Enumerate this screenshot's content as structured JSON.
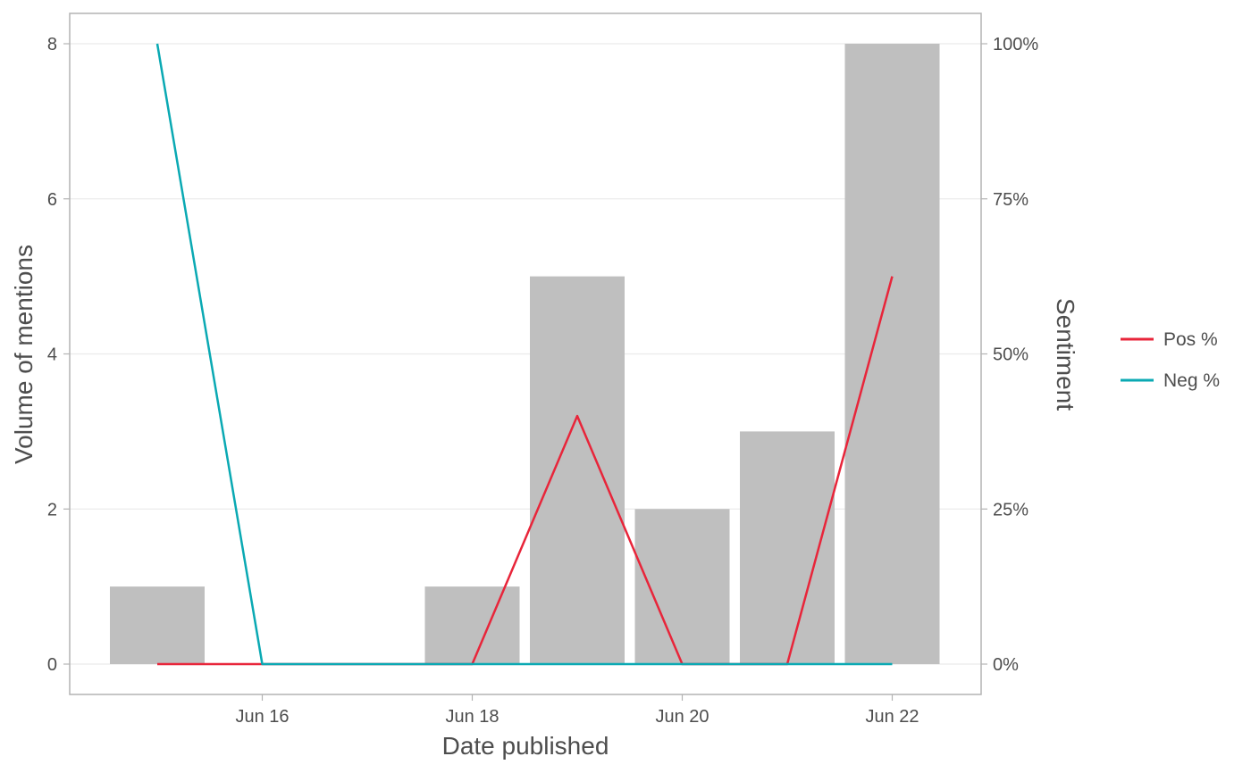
{
  "chart_data": {
    "type": "bar",
    "title": "",
    "xlabel": "Date published",
    "ylabel": "Volume of mentions",
    "y2label": "Sentiment",
    "categories": [
      "Jun 15",
      "Jun 16",
      "Jun 17",
      "Jun 18",
      "Jun 19",
      "Jun 20",
      "Jun 21",
      "Jun 22"
    ],
    "x_tick_labels": [
      "Jun 16",
      "Jun 18",
      "Jun 20",
      "Jun 22"
    ],
    "x_tick_indices": [
      1,
      3,
      5,
      7
    ],
    "ylim": [
      0,
      8
    ],
    "y_ticks": [
      0,
      2,
      4,
      6,
      8
    ],
    "y2lim": [
      0,
      100
    ],
    "y2_ticks": [
      0,
      25,
      50,
      75,
      100
    ],
    "y2_tick_labels": [
      "0%",
      "25%",
      "50%",
      "75%",
      "100%"
    ],
    "grid": true,
    "legend_position": "right",
    "bars": {
      "name": "Volume of mentions",
      "color": "#bfbfbf",
      "values": [
        1,
        0,
        0,
        1,
        5,
        2,
        3,
        8
      ]
    },
    "series": [
      {
        "name": "Pos %",
        "color": "#e8253a",
        "axis": "secondary",
        "values": [
          0,
          0,
          0,
          0,
          40,
          0,
          0,
          62.5
        ]
      },
      {
        "name": "Neg %",
        "color": "#0aa9b3",
        "axis": "secondary",
        "values": [
          100,
          0,
          0,
          0,
          0,
          0,
          0,
          0
        ]
      }
    ]
  }
}
